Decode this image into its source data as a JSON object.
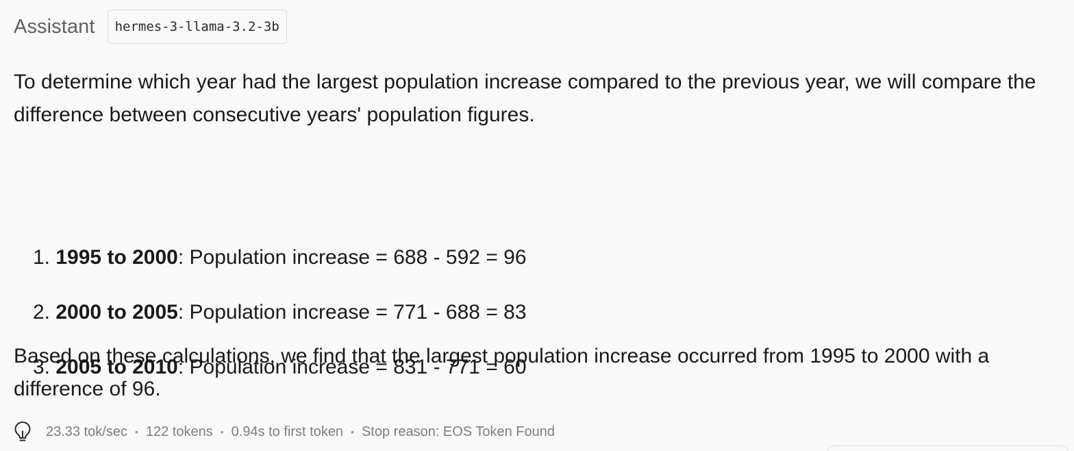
{
  "header": {
    "role": "Assistant",
    "model": "hermes-3-llama-3.2-3b"
  },
  "message": {
    "intro": "To determine which year had the largest population increase compared to the previous year, we will compare the difference between consecutive years' population figures.",
    "steps": [
      {
        "number": "1.",
        "period": "1995 to 2000",
        "detail": ": Population increase = 688 - 592 = 96"
      },
      {
        "number": "2.",
        "period": "2000 to 2005",
        "detail": ": Population increase = 771 - 688 = 83"
      },
      {
        "number": "3.",
        "period": "2005 to 2010",
        "detail": ": Population increase = 831 - 771 = 60"
      }
    ],
    "conclusion": "Based on these calculations, we find that the largest population increase occurred from 1995 to 2000 with a difference of 96."
  },
  "stats": {
    "icon": "lightbulb-icon",
    "speed": "23.33 tok/sec",
    "tokens": "122 tokens",
    "first_token": "0.94s to first token",
    "stop_reason": "Stop reason: EOS Token Found",
    "separator": "•"
  }
}
